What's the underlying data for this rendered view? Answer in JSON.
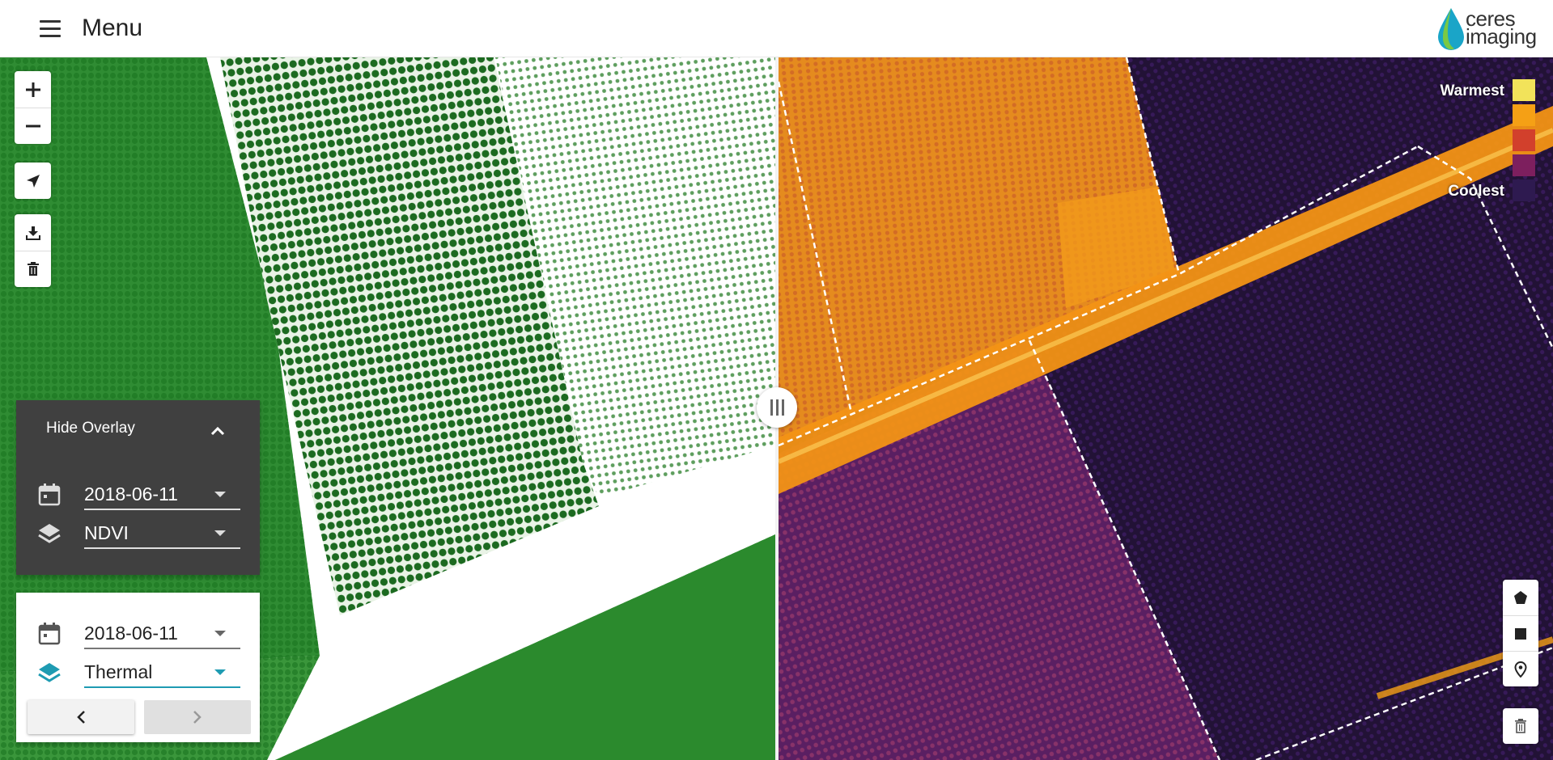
{
  "header": {
    "menu_label": "Menu",
    "logo": {
      "line1": "ceres",
      "line2": "imaging",
      "drop_color": "#1aa5c8"
    }
  },
  "map_controls": {
    "icons": [
      "plus-icon",
      "minus-icon",
      "locate-arrow-icon",
      "download-icon",
      "trash-icon"
    ]
  },
  "overlay_panel": {
    "toggle_label": "Hide Overlay",
    "date": "2018-06-11",
    "layer": "NDVI"
  },
  "base_panel": {
    "date": "2018-06-11",
    "layer": "Thermal",
    "accent_color": "#1e9bb2"
  },
  "legend": {
    "warmest_label": "Warmest",
    "coolest_label": "Coolest",
    "colors": [
      "#f2e35a",
      "#f5a015",
      "#d2402c",
      "#7d1f5e",
      "#2e1a50"
    ]
  },
  "draw_controls": {
    "icons": [
      "polygon-icon",
      "square-icon",
      "marker-icon",
      "trash-icon"
    ]
  }
}
